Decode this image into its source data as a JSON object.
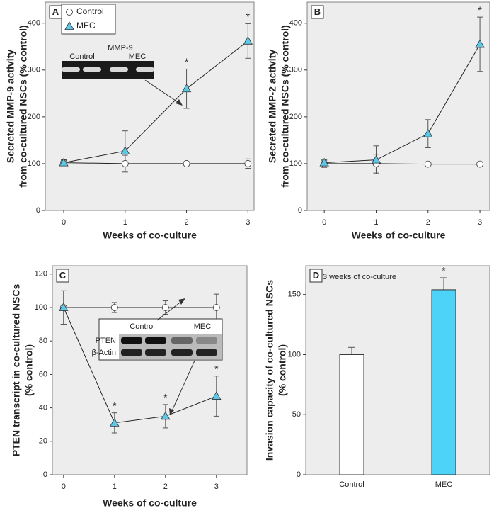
{
  "chart_data": [
    {
      "type": "line",
      "panel": "A",
      "xlabel": "Weeks of co-culture",
      "ylabel": [
        "Secreted MMP-9 activity",
        "from co-cultured NSCs (% control)"
      ],
      "x": [
        0,
        1,
        2,
        3
      ],
      "xlim": [
        -0.3,
        3.1
      ],
      "xticks": [
        0,
        1,
        2,
        3
      ],
      "ylim": [
        0,
        445
      ],
      "yticks": [
        0,
        100,
        200,
        300,
        400
      ],
      "legend": "upper left",
      "series": [
        {
          "name": "Control",
          "marker": "circle",
          "color": "#ffffff",
          "values": [
            102,
            100,
            100,
            100
          ],
          "errors": [
            6,
            18,
            4,
            10
          ],
          "significance": [
            null,
            null,
            null,
            null
          ]
        },
        {
          "name": "MEC",
          "marker": "triangle",
          "color": "#5bc8e8",
          "values": [
            102,
            127,
            260,
            362
          ],
          "errors": [
            6,
            43,
            42,
            37
          ],
          "significance": [
            null,
            null,
            "*",
            "*"
          ]
        }
      ],
      "inset": {
        "title": "MMP-9",
        "labels": [
          "Control",
          "MEC"
        ]
      }
    },
    {
      "type": "line",
      "panel": "B",
      "xlabel": "Weeks of co-culture",
      "ylabel": [
        "Secreted MMP-2 activity",
        "from co-cultured NSCs (% control)"
      ],
      "x": [
        0,
        1,
        2,
        3
      ],
      "xlim": [
        -0.33,
        3.19
      ],
      "xticks": [
        0,
        1,
        2,
        3
      ],
      "ylim": [
        0,
        445
      ],
      "yticks": [
        0,
        100,
        200,
        300,
        400
      ],
      "series": [
        {
          "marker": "circle",
          "color": "#ffffff",
          "values": [
            100,
            100,
            99,
            99
          ],
          "errors": [
            8,
            20,
            2,
            2
          ],
          "significance": [
            null,
            null,
            null,
            null
          ]
        },
        {
          "marker": "triangle",
          "color": "#5bc8e8",
          "values": [
            102,
            108,
            164,
            355
          ],
          "errors": [
            5,
            30,
            30,
            58
          ],
          "significance": [
            null,
            null,
            null,
            "*"
          ]
        }
      ]
    },
    {
      "type": "line",
      "panel": "C",
      "xlabel": "Weeks of co-culture",
      "ylabel": [
        "PTEN transcript in co-cultured NSCs",
        "(% control)"
      ],
      "x": [
        0,
        1,
        2,
        3
      ],
      "xlim": [
        -0.22,
        3.6
      ],
      "xticks": [
        0,
        1,
        2,
        3
      ],
      "ylim": [
        0,
        125
      ],
      "yticks": [
        0,
        20,
        40,
        60,
        80,
        100,
        120
      ],
      "series": [
        {
          "marker": "circle",
          "color": "#ffffff",
          "values": [
            100,
            100,
            100,
            100
          ],
          "errors": [
            10,
            3,
            4,
            8
          ],
          "significance": [
            null,
            null,
            null,
            null
          ]
        },
        {
          "marker": "triangle",
          "color": "#5bc8e8",
          "values": [
            100,
            31,
            35,
            47
          ],
          "errors": [
            10,
            6,
            7,
            12
          ],
          "significance": [
            null,
            "*",
            "*",
            "*"
          ]
        }
      ],
      "inset": {
        "labels": [
          "Control",
          "MEC"
        ],
        "rows": [
          "PTEN",
          "β-Actin"
        ]
      }
    },
    {
      "type": "bar",
      "panel": "D",
      "ylabel": [
        "Invasion capacity of co-cultured NSCs",
        "(% control)"
      ],
      "annotation": "3 weeks of co-culture",
      "categories": [
        "Control",
        "MEC"
      ],
      "values": [
        100,
        154
      ],
      "errors": [
        6,
        10
      ],
      "colors": [
        "#ffffff",
        "#4dd3f7"
      ],
      "significance": [
        null,
        "*"
      ],
      "ylim": [
        0,
        174
      ],
      "yticks": [
        0,
        50,
        100,
        150
      ]
    }
  ]
}
